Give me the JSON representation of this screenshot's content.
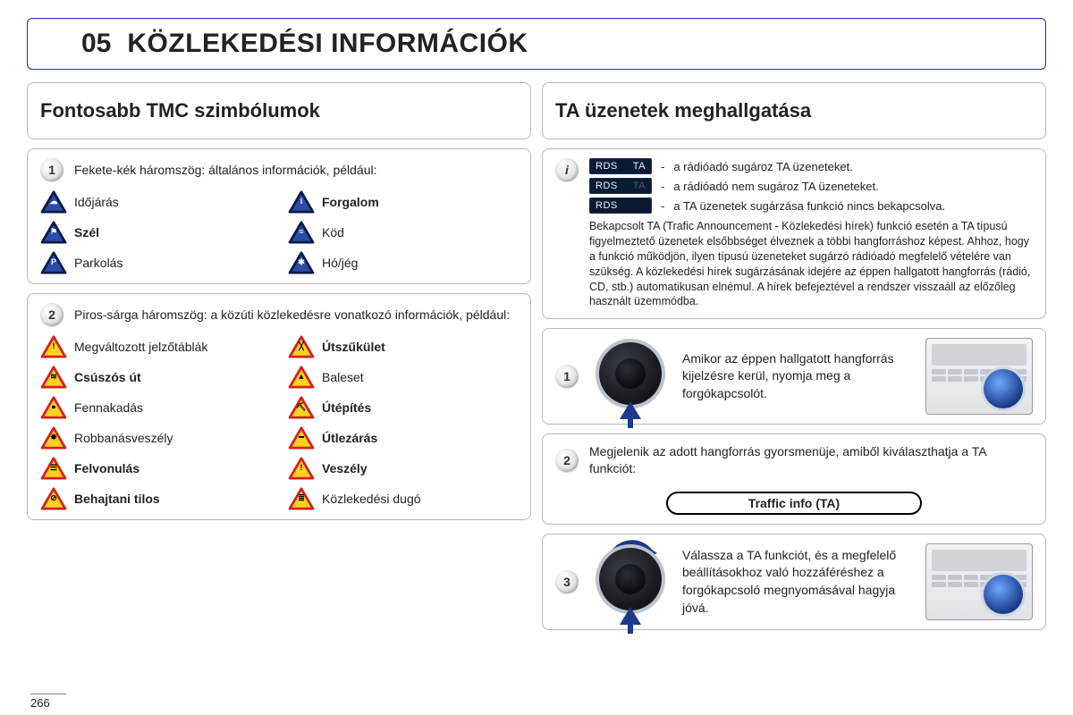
{
  "header": {
    "number": "05",
    "title": "KÖZLEKEDÉSI INFORMÁCIÓK"
  },
  "left": {
    "heading": "Fontosabb TMC szimbólumok",
    "section1": {
      "badge": "1",
      "intro": "Fekete-kék háromszög: általános információk, például:",
      "items": [
        {
          "label": "Időjárás",
          "bold": false,
          "glyph": "☁"
        },
        {
          "label": "Forgalom",
          "bold": true,
          "glyph": "i"
        },
        {
          "label": "Szél",
          "bold": true,
          "glyph": "⚑"
        },
        {
          "label": "Köd",
          "bold": false,
          "glyph": "≈"
        },
        {
          "label": "Parkolás",
          "bold": false,
          "glyph": "P"
        },
        {
          "label": "Hó/jég",
          "bold": false,
          "glyph": "✱"
        }
      ],
      "tri_fill": "#2a4da8",
      "tri_stroke": "#0a1a44"
    },
    "section2": {
      "badge": "2",
      "intro": "Piros-sárga háromszög: a közúti közlekedésre vonatkozó információk, például:",
      "items": [
        {
          "label": "Megváltozott jelzőtáblák",
          "bold": false,
          "glyph": "!"
        },
        {
          "label": "Útszűkület",
          "bold": true,
          "glyph": "╳"
        },
        {
          "label": "Csúszós út",
          "bold": true,
          "glyph": "≋"
        },
        {
          "label": "Baleset",
          "bold": false,
          "glyph": "▲"
        },
        {
          "label": "Fennakadás",
          "bold": false,
          "glyph": "●"
        },
        {
          "label": "Útépítés",
          "bold": true,
          "glyph": "⛏"
        },
        {
          "label": "Robbanásveszély",
          "bold": false,
          "glyph": "✸"
        },
        {
          "label": "Útlezárás",
          "bold": true,
          "glyph": "━"
        },
        {
          "label": "Felvonulás",
          "bold": true,
          "glyph": "☰"
        },
        {
          "label": "Veszély",
          "bold": true,
          "glyph": "!"
        },
        {
          "label": "Behajtani tilos",
          "bold": true,
          "glyph": "⊘"
        },
        {
          "label": "Közlekedési dugó",
          "bold": false,
          "glyph": "≣"
        }
      ],
      "tri_fill": "#ffd21f",
      "tri_stroke": "#d42020"
    }
  },
  "right": {
    "heading": "TA üzenetek meghallgatása",
    "info": {
      "badge": "i",
      "rows": [
        {
          "rds": "RDS",
          "ta": "TA",
          "ta_color": "#e8f1ff",
          "text": "a rádióadó sugároz TA üzeneteket."
        },
        {
          "rds": "RDS",
          "ta": "TA",
          "ta_color": "#4a5568",
          "text": "a rádióadó nem sugároz TA üzeneteket."
        },
        {
          "rds": "RDS",
          "ta": "",
          "ta_color": "#4a5568",
          "text": "a TA üzenetek sugárzása funkció nincs bekapcsolva."
        }
      ],
      "explain": "Bekapcsolt TA (Trafic Announcement - Közlekedési hírek) funkció esetén a TA típusú figyelmeztető üzenetek elsőbbséget élveznek a többi hangforráshoz képest. Ahhoz, hogy a funkció működjön, ilyen típusú üzeneteket sugárzó rádióadó megfelelő vételére van szükség. A közlekedési hírek sugárzásának idejére az éppen hallgatott hangforrás (rádió, CD, stb.) automatikusan elnémul. A hírek befejeztével a rendszer visszaáll az előzőleg használt üzemmódba."
    },
    "step1": {
      "badge": "1",
      "text": "Amikor az éppen hallgatott hangforrás kijelzésre kerül, nyomja meg a forgókapcsolót."
    },
    "step2": {
      "badge": "2",
      "text": "Megjelenik az adott hangforrás gyorsmenüje, amiből kiválaszthatja a TA funkciót:",
      "pill": "Traffic info (TA)"
    },
    "step3": {
      "badge": "3",
      "text": "Válassza a TA funkciót, és a megfelelő beállításokhoz való hozzáféréshez a forgókapcsoló megnyomásával hagyja jóvá."
    }
  },
  "page_number": "266",
  "colors": {
    "brand": "#1a3a8a",
    "panel_border": "#b8b8b8"
  }
}
